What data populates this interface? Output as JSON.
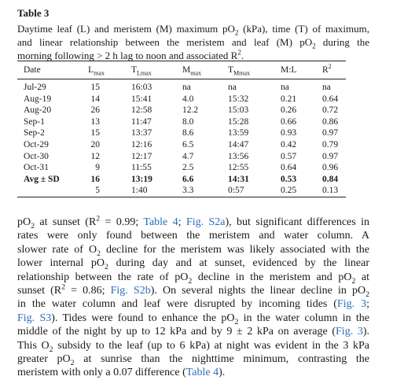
{
  "table_title": "Table 3",
  "caption": {
    "lines": [
      [
        "Daytime leaf (L) and meristem (M) maximum pO",
        {
          "sub": "2"
        },
        " (kPa), time (T) of maximum,"
      ],
      [
        "and linear relationship between the meristem and leaf (M) pO",
        {
          "sub": "2"
        },
        " during the"
      ],
      [
        "morning following > 2 h lag to noon and associated R",
        {
          "sup": "2"
        },
        "."
      ]
    ]
  },
  "table": {
    "header": [
      [
        "Date"
      ],
      [
        "L",
        {
          "sub": "max"
        }
      ],
      [
        "T",
        {
          "sub": "Lmax"
        }
      ],
      [
        "M",
        {
          "sub": "max"
        }
      ],
      [
        "T",
        {
          "sub": "Mmax"
        }
      ],
      [
        "M:L"
      ],
      [
        "R",
        {
          "sup": "2"
        }
      ]
    ],
    "rows": [
      [
        "Jul-29",
        "15",
        "16:03",
        "na",
        "na",
        "na",
        "na"
      ],
      [
        "Aug-19",
        "14",
        "15:41",
        "4.0",
        "15:32",
        "0.21",
        "0.64"
      ],
      [
        "Aug-20",
        "26",
        "12:58",
        "12.2",
        "15:03",
        "0.26",
        "0.72"
      ],
      [
        "Sep-1",
        "13",
        "11:47",
        "8.0",
        "15:28",
        "0.66",
        "0.86"
      ],
      [
        "Sep-2",
        "15",
        "13:37",
        "8.6",
        "13:59",
        "0.93",
        "0.97"
      ],
      [
        "Oct-29",
        "20",
        "12:16",
        "6.5",
        "14:47",
        "0.42",
        "0.79"
      ],
      [
        "Oct-30",
        "12",
        "12:17",
        "4.7",
        "13:56",
        "0.57",
        "0.97"
      ],
      [
        "Oct-31",
        "9",
        "11:55",
        "2.5",
        "12:55",
        "0.64",
        "0.96"
      ],
      [
        "Avg ± SD",
        "16",
        "13:19",
        "6.6",
        "14:31",
        "0.53",
        "0.84"
      ],
      [
        null,
        "5",
        "1:40",
        "3.3",
        "0:57",
        "0.25",
        "0.13"
      ]
    ]
  },
  "paragraph": {
    "lines": [
      [
        "pO",
        {
          "sub": "2"
        },
        " at sunset (R",
        {
          "sup": "2"
        },
        " = 0.99; ",
        {
          "link": "Table 4"
        },
        "; ",
        {
          "link": "Fig. S2a"
        },
        "), but significant differences in"
      ],
      [
        "rates were only found between the meristem and water column. A"
      ],
      [
        "slower rate of O",
        {
          "sub": "2"
        },
        " decline for the meristem was likely associated with the"
      ],
      [
        "lower internal pO",
        {
          "sub": "2"
        },
        " during day and at sunset, evidenced by the linear"
      ],
      [
        "relationship between the rate of pO",
        {
          "sub": "2"
        },
        " decline in the meristem and pO",
        {
          "sub": "2"
        },
        " at"
      ],
      [
        "sunset (R",
        {
          "sup": "2"
        },
        " = 0.86; ",
        {
          "link": "Fig. S2b"
        },
        "). On several nights the linear decline in pO",
        {
          "sub": "2"
        }
      ],
      [
        "in the water column and leaf were disrupted by incoming tides (",
        {
          "link": "Fig. 3"
        },
        ";"
      ],
      [
        {
          "link": "Fig. S3"
        },
        "). Tides were found to enhance the pO",
        {
          "sub": "2"
        },
        " in the water column in the"
      ],
      [
        "middle of the night by up to 12 kPa and by 9 ± 2 kPa on average (",
        {
          "link": "Fig. 3"
        },
        ")."
      ],
      [
        "This O",
        {
          "sub": "2"
        },
        " subsidy to the leaf (up to 6 kPa) at night was evident in the 3 kPa"
      ],
      [
        "greater pO",
        {
          "sub": "2"
        },
        " at sunrise than the nighttime minimum, contrasting the"
      ],
      [
        "meristem with only a 0.07 difference (",
        {
          "link": "Table 4"
        },
        ")."
      ]
    ]
  }
}
